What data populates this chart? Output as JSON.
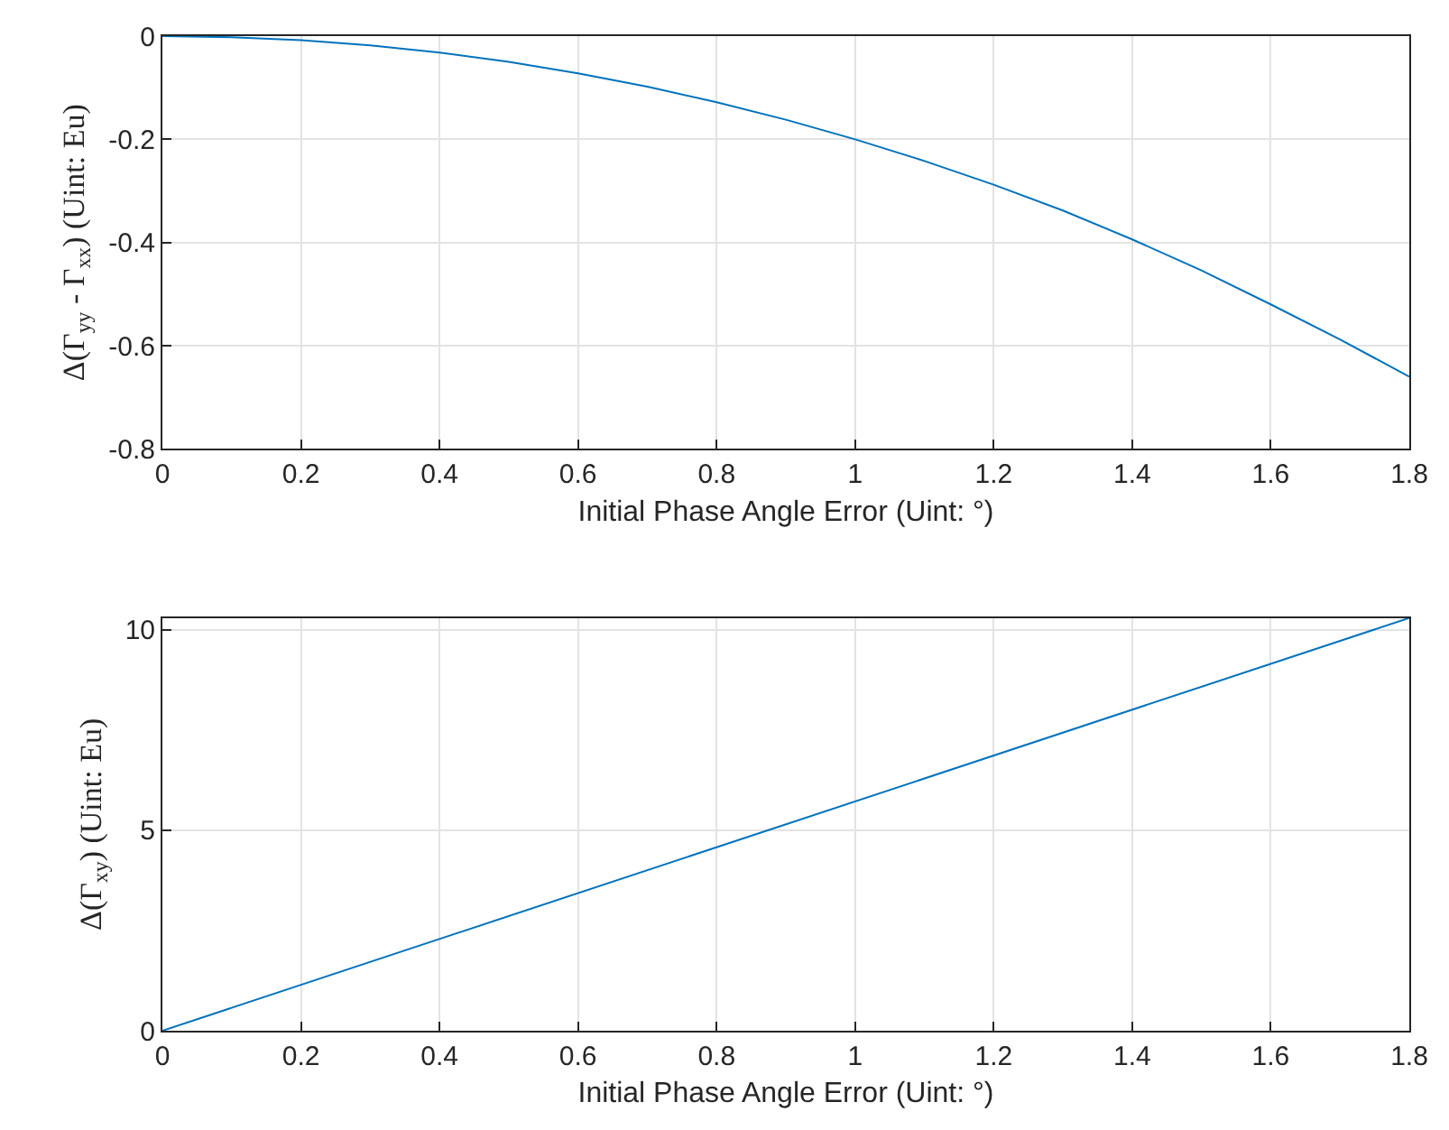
{
  "chart_data": [
    {
      "type": "line",
      "xlabel": "Initial Phase Angle Error (Uint: °)",
      "ylabel": "Δ(Γ$_{yy}$ - Γ$_{xx}$) (Uint: Eu)",
      "x": [
        0,
        0.1,
        0.2,
        0.3,
        0.4,
        0.5,
        0.6,
        0.7,
        0.8,
        0.9,
        1.0,
        1.1,
        1.2,
        1.3,
        1.4,
        1.5,
        1.6,
        1.7,
        1.8
      ],
      "series": [
        {
          "color": "#0072bd",
          "values": [
            0,
            -0.002,
            -0.008,
            -0.018,
            -0.032,
            -0.05,
            -0.072,
            -0.098,
            -0.128,
            -0.162,
            -0.2,
            -0.242,
            -0.288,
            -0.338,
            -0.394,
            -0.454,
            -0.52,
            -0.588,
            -0.66
          ]
        }
      ],
      "xlim": [
        0,
        1.8
      ],
      "xticks": [
        0,
        0.2,
        0.4,
        0.6,
        0.8,
        1,
        1.2,
        1.4,
        1.6,
        1.8
      ],
      "ylim": [
        -0.8,
        0
      ],
      "yticks": [
        -0.8,
        -0.6,
        -0.4,
        -0.2,
        0
      ],
      "grid": true
    },
    {
      "type": "line",
      "xlabel": "Initial Phase Angle Error (Uint: °)",
      "ylabel": "Δ(Γ$_{xy}$) (Uint: Eu)",
      "x": [
        0,
        1.8
      ],
      "series": [
        {
          "color": "#0072bd",
          "values": [
            0,
            10.3
          ]
        }
      ],
      "xlim": [
        0,
        1.8
      ],
      "xticks": [
        0,
        0.2,
        0.4,
        0.6,
        0.8,
        1,
        1.2,
        1.4,
        1.6,
        1.8
      ],
      "ylim": [
        0,
        10.3
      ],
      "yticks": [
        0,
        5,
        10
      ],
      "grid": true
    }
  ]
}
